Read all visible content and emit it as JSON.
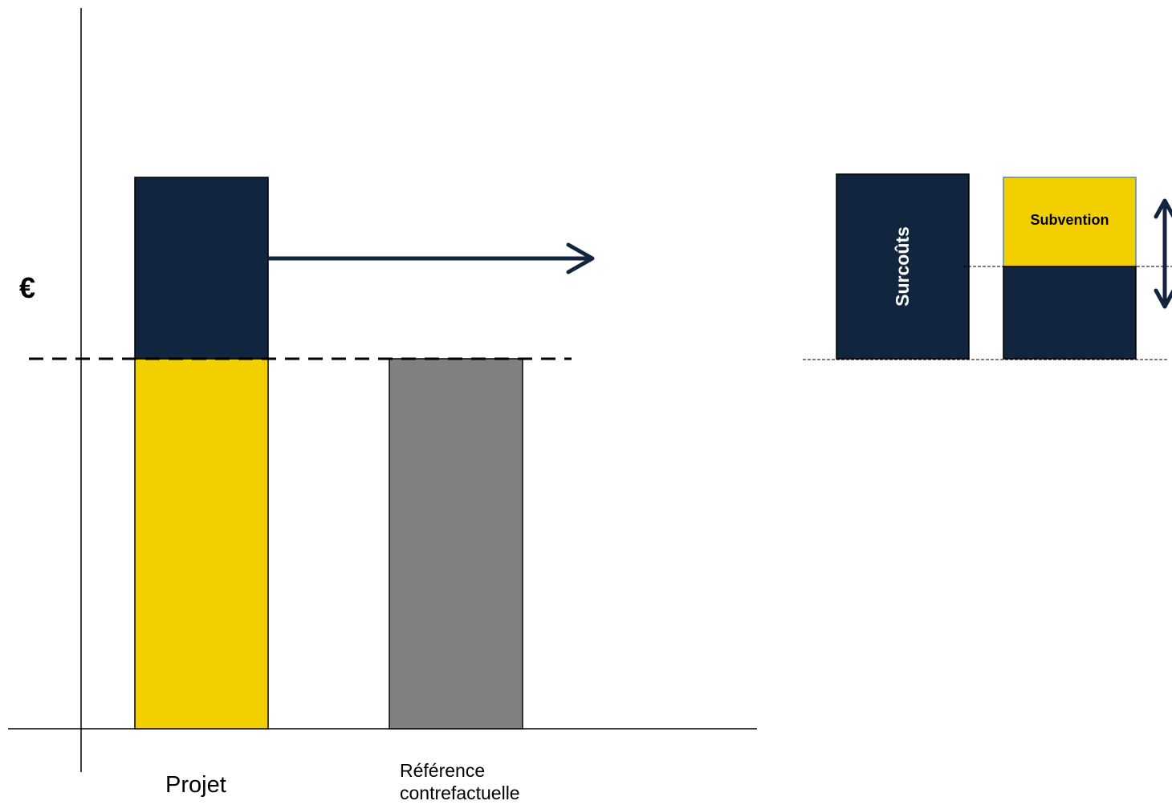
{
  "diagram": {
    "axis_symbol": "€",
    "bars": [
      {
        "label": "Projet"
      },
      {
        "label_line1": "Référence",
        "label_line2": "contrefactuelle"
      }
    ],
    "detail": {
      "surcouts_label": "Surcoûts",
      "subvention_label": "Subvention"
    }
  },
  "colors": {
    "navy": "#12253f",
    "yellow": "#f2d000",
    "gray": "#808080",
    "line": "#000000"
  }
}
